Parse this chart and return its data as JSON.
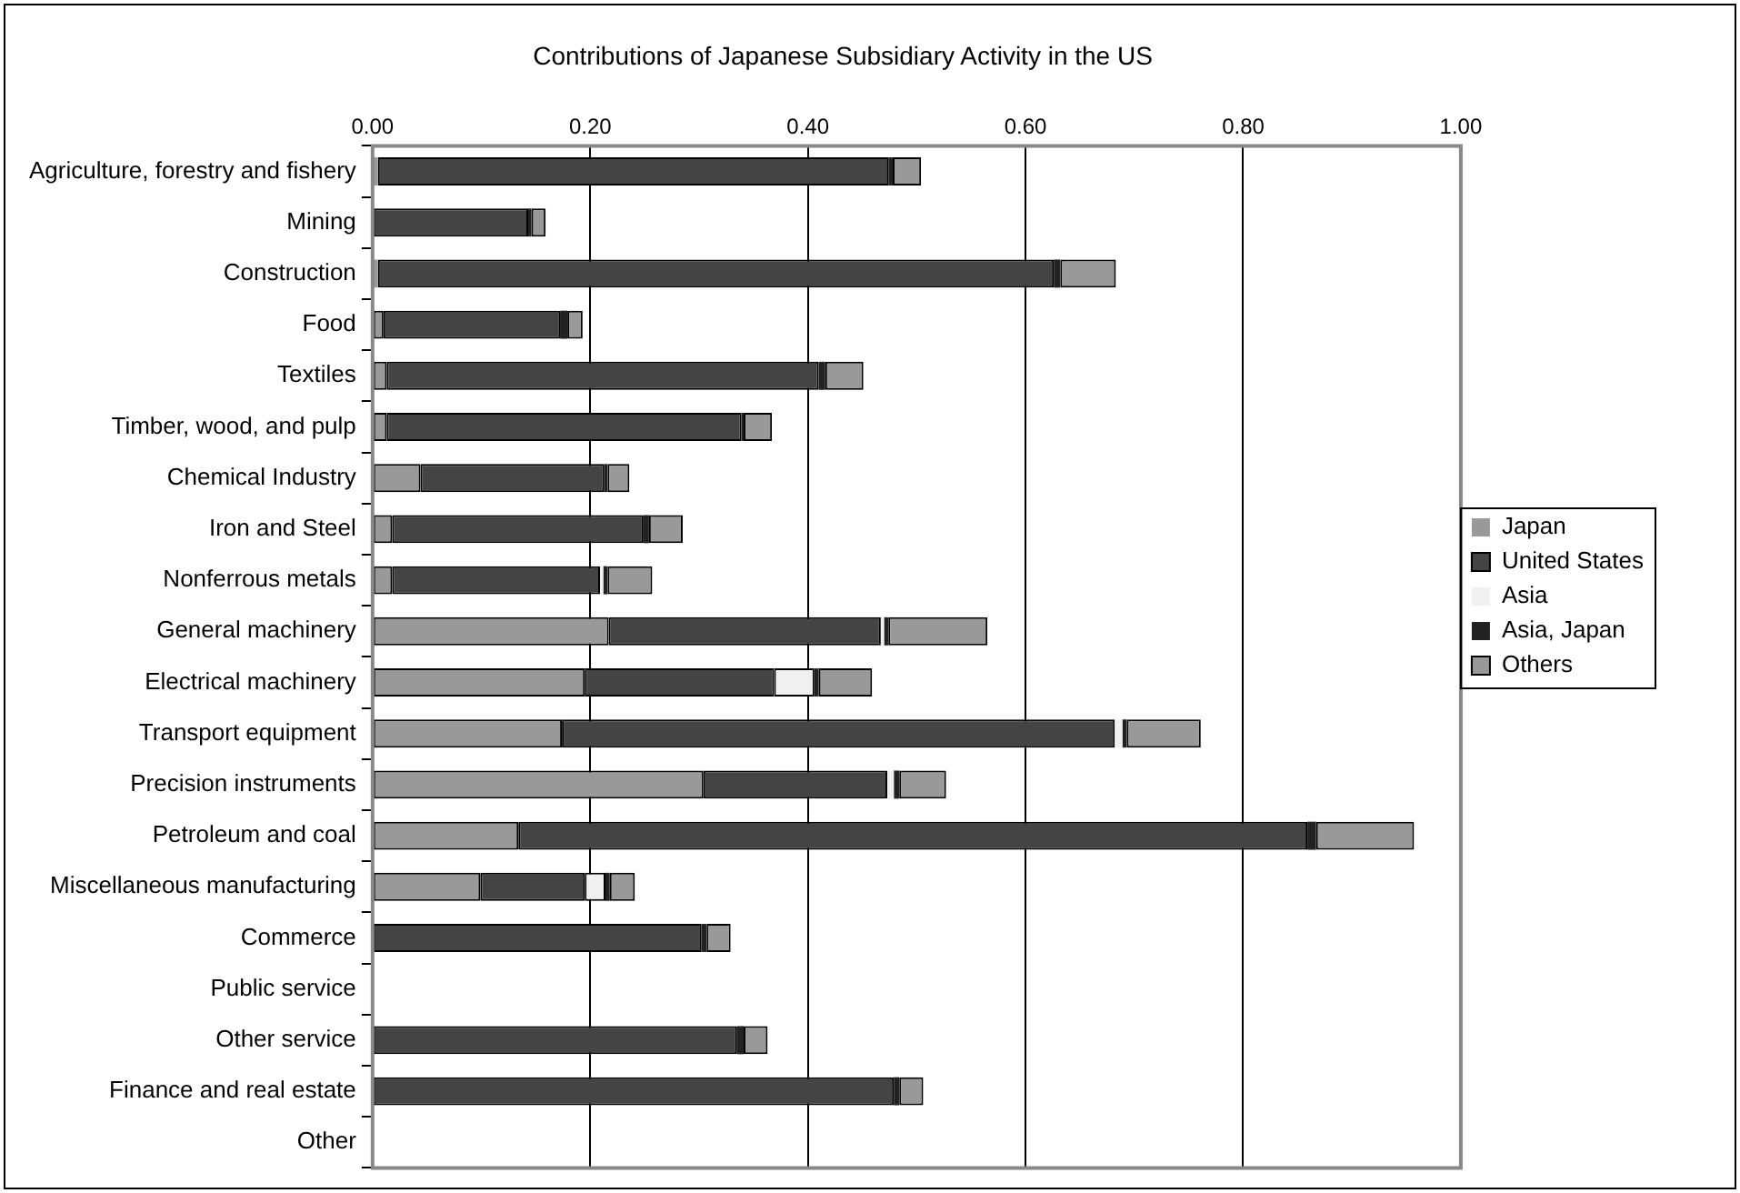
{
  "chart_data": {
    "type": "bar",
    "orientation": "horizontal",
    "stacked": true,
    "title": "Contributions of Japanese Subsidiary Activity in the US",
    "categories": [
      "Agriculture, forestry and fishery",
      "Mining",
      "Construction",
      "Food",
      "Textiles",
      "Timber, wood, and pulp",
      "Chemical Industry",
      "Iron and Steel",
      "Nonferrous metals",
      "General machinery",
      "Electrical machinery",
      "Transport equipment",
      "Precision instruments",
      "Petroleum and coal",
      "Miscellaneous manufacturing",
      "Commerce",
      "Public service",
      "Other service",
      "Finance and real estate",
      "Other"
    ],
    "series": [
      {
        "name": "Japan",
        "color": "#999999",
        "values": [
          0.005,
          0,
          0.005,
          0.01,
          0.013,
          0.013,
          0.044,
          0.018,
          0.018,
          0.217,
          0.195,
          0.174,
          0.304,
          0.134,
          0.099,
          null,
          0,
          null,
          null,
          0
        ]
      },
      {
        "name": "United States",
        "color": "#444444",
        "values": [
          0.469,
          0.143,
          0.621,
          0.163,
          0.397,
          0.326,
          0.169,
          0.231,
          0.191,
          0.25,
          0.174,
          0.508,
          0.169,
          0.725,
          0.096,
          0.302,
          0,
          0.335,
          0.479,
          0
        ]
      },
      {
        "name": "Asia",
        "color": "#f0f0f0",
        "values": [
          0,
          0,
          0,
          0,
          0,
          0,
          0,
          0,
          0.003,
          0.003,
          0.037,
          0.007,
          0.006,
          0,
          0.019,
          0,
          0,
          0,
          0,
          0
        ]
      },
      {
        "name": "Asia, Japan",
        "color": "#222222",
        "values": [
          0.004,
          0.003,
          0.006,
          0.006,
          0.006,
          0.002,
          0.003,
          0.005,
          0.004,
          0.004,
          0.004,
          0.004,
          0.005,
          0.008,
          0.004,
          0.005,
          0,
          0.006,
          0.005,
          0
        ]
      },
      {
        "name": "Others",
        "color": "#999999",
        "values": [
          0.026,
          0.013,
          0.051,
          0.014,
          0.035,
          0.026,
          0.02,
          0.031,
          0.041,
          0.091,
          0.049,
          0.068,
          0.043,
          0.09,
          0.023,
          0.022,
          0,
          0.022,
          0.022,
          0
        ]
      }
    ],
    "xlim": [
      0,
      1
    ],
    "xticks": [
      {
        "value": 0,
        "label": "0.00"
      },
      {
        "value": 0.2,
        "label": "0.20"
      },
      {
        "value": 0.4,
        "label": "0.40"
      },
      {
        "value": 0.6,
        "label": "0.60"
      },
      {
        "value": 0.8,
        "label": "0.80"
      },
      {
        "value": 1,
        "label": "1.00"
      }
    ],
    "grid": "x",
    "legend": "right"
  }
}
